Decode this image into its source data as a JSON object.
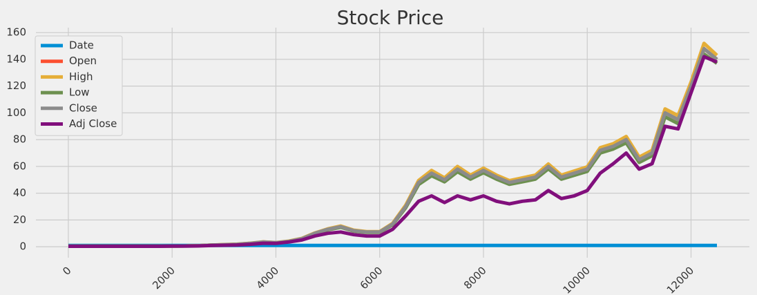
{
  "chart_data": {
    "type": "line",
    "title": "Stock Price",
    "x": [
      0,
      250,
      500,
      750,
      1000,
      1250,
      1500,
      1750,
      2000,
      2250,
      2500,
      2750,
      3000,
      3250,
      3500,
      3750,
      4000,
      4250,
      4500,
      4750,
      5000,
      5250,
      5500,
      5750,
      6000,
      6250,
      6500,
      6750,
      7000,
      7250,
      7500,
      7750,
      8000,
      8250,
      8500,
      8750,
      9000,
      9250,
      9500,
      9750,
      10000,
      10250,
      10500,
      10750,
      11000,
      11250,
      11500,
      11750,
      12000,
      12250,
      12500
    ],
    "series": [
      {
        "name": "Date",
        "color": "#008fd5",
        "values": [
          1,
          1,
          1,
          1,
          1,
          1,
          1,
          1,
          1,
          1,
          1,
          1,
          1,
          1,
          1,
          1,
          1,
          1,
          1,
          1,
          1,
          1,
          1,
          1,
          1,
          1,
          1,
          1,
          1,
          1,
          1,
          1,
          1,
          1,
          1,
          1,
          1,
          1,
          1,
          1,
          1,
          1,
          1,
          1,
          1,
          1,
          1,
          1,
          1,
          1,
          1
        ]
      },
      {
        "name": "Open",
        "color": "#fc4f30",
        "values": [
          0.5,
          0.5,
          0.4,
          0.4,
          0.4,
          0.4,
          0.4,
          0.5,
          0.5,
          0.6,
          0.8,
          1.2,
          1.5,
          1.8,
          2.5,
          3.5,
          3,
          4,
          6,
          10,
          13,
          15,
          12,
          11,
          11,
          17,
          30,
          48,
          55,
          50,
          58,
          52,
          57,
          52,
          48,
          50,
          52,
          60,
          52,
          55,
          58,
          72,
          75,
          80,
          65,
          70,
          100,
          95,
          120,
          148,
          140
        ]
      },
      {
        "name": "High",
        "color": "#e5ae38",
        "values": [
          0.5,
          0.5,
          0.4,
          0.4,
          0.4,
          0.4,
          0.4,
          0.5,
          0.5,
          0.6,
          0.8,
          1.2,
          1.6,
          1.9,
          2.6,
          3.6,
          3.1,
          4.2,
          6.2,
          10.3,
          13.4,
          15.5,
          12.4,
          11.3,
          11.3,
          17.5,
          31,
          49.5,
          57,
          51.5,
          60,
          53.5,
          58.7,
          53.5,
          49.4,
          51.5,
          53.5,
          61.8,
          53.5,
          56.6,
          59.7,
          74,
          77,
          82.4,
          67,
          72,
          103,
          98,
          123,
          152,
          143
        ]
      },
      {
        "name": "Low",
        "color": "#6d904f",
        "values": [
          0.5,
          0.5,
          0.4,
          0.4,
          0.4,
          0.4,
          0.4,
          0.5,
          0.5,
          0.6,
          0.8,
          1.2,
          1.4,
          1.7,
          2.4,
          3.4,
          2.9,
          3.9,
          5.8,
          9.7,
          12.6,
          14.5,
          11.6,
          10.7,
          10.7,
          16.5,
          29,
          46.5,
          53,
          48.5,
          56,
          50.5,
          55.3,
          50.5,
          46.6,
          48.5,
          50.5,
          58.2,
          50.5,
          53.4,
          56.3,
          70,
          73,
          77.6,
          63,
          68,
          97,
          92,
          117,
          144,
          137
        ]
      },
      {
        "name": "Close",
        "color": "#8b8b8b",
        "values": [
          0.5,
          0.5,
          0.4,
          0.4,
          0.4,
          0.4,
          0.4,
          0.5,
          0.5,
          0.6,
          0.8,
          1.2,
          1.5,
          1.8,
          2.5,
          3.5,
          3,
          4,
          6,
          10,
          13,
          15,
          12,
          11,
          11,
          17,
          30,
          48,
          55,
          50,
          58,
          52,
          57,
          52,
          48,
          50,
          52,
          60,
          52,
          55,
          58,
          72,
          75,
          80,
          65,
          70,
          100,
          95,
          120,
          148,
          140
        ]
      },
      {
        "name": "Adj Close",
        "color": "#810f7c",
        "values": [
          0.3,
          0.3,
          0.3,
          0.3,
          0.3,
          0.3,
          0.3,
          0.3,
          0.4,
          0.4,
          0.6,
          0.9,
          1.1,
          1.3,
          1.8,
          2.6,
          2.5,
          3.5,
          5,
          8,
          10,
          11,
          9,
          8,
          8,
          13,
          23,
          34,
          38,
          33,
          38,
          35,
          38,
          34,
          32,
          34,
          35,
          42,
          36,
          38,
          42,
          55,
          62,
          70,
          58,
          62,
          90,
          88,
          115,
          142,
          138
        ]
      }
    ],
    "xlim": [
      -625,
      13125
    ],
    "ylim": [
      -8.2,
      163.7
    ],
    "xticks": [
      0,
      2000,
      4000,
      6000,
      8000,
      10000,
      12000
    ],
    "yticks": [
      0,
      20,
      40,
      60,
      80,
      100,
      120,
      140,
      160
    ],
    "grid": true,
    "legend": "upper-left"
  }
}
